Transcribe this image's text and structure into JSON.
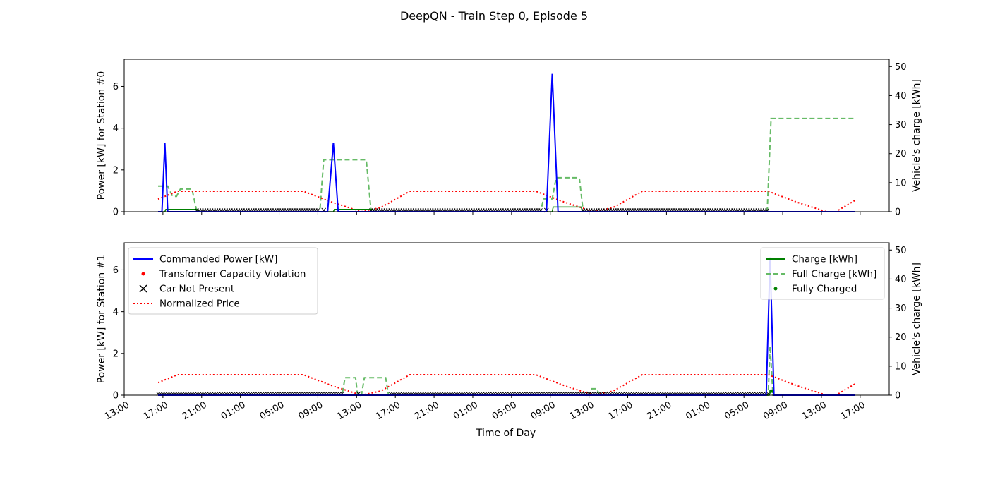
{
  "figure": {
    "title": "DeepQN - Train Step 0, Episode 5",
    "xlabel": "Time of Day",
    "x_tick_labels": [
      "13:00",
      "17:00",
      "21:00",
      "01:00",
      "05:00",
      "09:00",
      "13:00",
      "17:00",
      "21:00",
      "01:00",
      "05:00",
      "09:00",
      "13:00",
      "17:00",
      "21:00",
      "01:00",
      "05:00",
      "09:00",
      "13:00",
      "17:00"
    ]
  },
  "colors": {
    "commanded_power": "#0000ff",
    "violation": "#ff0000",
    "car_not_present": "#000000",
    "normalized_price": "#ff0000",
    "charge": "#008000",
    "full_charge": "#66bb66",
    "fully_charged": "#008000"
  },
  "legend_left": [
    {
      "key": "power",
      "label": "Commanded Power [kW]",
      "icon": "blue-line"
    },
    {
      "key": "violation",
      "label": "Transformer Capacity Violation",
      "icon": "red-dot"
    },
    {
      "key": "notpresent",
      "label": "Car Not Present",
      "icon": "black-x"
    },
    {
      "key": "price",
      "label": "Normalized Price",
      "icon": "red-dotted-line"
    }
  ],
  "legend_right": [
    {
      "key": "charge",
      "label": "Charge [kWh]",
      "icon": "green-line"
    },
    {
      "key": "fullcharge",
      "label": "Full Charge [kWh]",
      "icon": "green-dashed-line"
    },
    {
      "key": "fullycharged",
      "label": "Fully Charged",
      "icon": "green-dot"
    }
  ],
  "chart_data": [
    {
      "type": "line",
      "ylabel": "Power [kW] for Station #0",
      "y2label": "Vehicle's charge [kWh]",
      "ylim": [
        0,
        7.3
      ],
      "y2lim": [
        0,
        52.5
      ],
      "yticks": [
        0,
        2,
        4,
        6
      ],
      "y2ticks": [
        0,
        10,
        20,
        30,
        40,
        50
      ],
      "x_unit": "hours from 13:00 (day 1)",
      "xlim": [
        0,
        79
      ],
      "power": [
        [
          3.5,
          0
        ],
        [
          3.9,
          0
        ],
        [
          4.2,
          3.3
        ],
        [
          4.5,
          0
        ],
        [
          21.0,
          0
        ],
        [
          21.6,
          3.3
        ],
        [
          22.1,
          0
        ],
        [
          43.6,
          0
        ],
        [
          44.2,
          6.6
        ],
        [
          44.8,
          0
        ],
        [
          75.0,
          0
        ],
        [
          75.5,
          0
        ]
      ],
      "full_charge": [
        [
          3.5,
          8.8
        ],
        [
          4.5,
          8.8
        ],
        [
          5.0,
          5.3
        ],
        [
          5.4,
          5.3
        ],
        [
          5.8,
          7.8
        ],
        [
          7.0,
          7.8
        ],
        [
          7.5,
          0
        ],
        [
          20.2,
          0
        ],
        [
          20.6,
          17.9
        ],
        [
          25.0,
          17.9
        ],
        [
          25.5,
          0
        ],
        [
          43.0,
          0
        ],
        [
          43.3,
          4.4
        ],
        [
          44.2,
          4.4
        ],
        [
          44.6,
          11.7
        ],
        [
          47.0,
          11.7
        ],
        [
          47.4,
          0
        ],
        [
          66.4,
          0
        ],
        [
          66.8,
          32.1
        ],
        [
          75.5,
          32.1
        ]
      ],
      "charge": [
        [
          3.5,
          0
        ],
        [
          4.2,
          0
        ],
        [
          4.3,
          0.8
        ],
        [
          5.5,
          0.8
        ],
        [
          7.6,
          0.8
        ],
        [
          7.7,
          0
        ],
        [
          21.6,
          0
        ],
        [
          21.7,
          0.8
        ],
        [
          25.7,
          0.8
        ],
        [
          25.8,
          0
        ],
        [
          44.2,
          0
        ],
        [
          44.3,
          1.6
        ],
        [
          47.2,
          1.6
        ],
        [
          47.3,
          0
        ],
        [
          75.5,
          0
        ]
      ],
      "price": [
        [
          3.5,
          0.6
        ],
        [
          5.5,
          0.98
        ],
        [
          18.5,
          0.98
        ],
        [
          21.5,
          0.45
        ],
        [
          24.5,
          0
        ],
        [
          26.5,
          0.2
        ],
        [
          29.5,
          0.98
        ],
        [
          42.5,
          0.98
        ],
        [
          45.5,
          0.45
        ],
        [
          48.5,
          0
        ],
        [
          50.5,
          0.2
        ],
        [
          53.5,
          0.98
        ],
        [
          66.5,
          0.98
        ],
        [
          69.5,
          0.45
        ],
        [
          72.5,
          0
        ],
        [
          73.5,
          0
        ],
        [
          75.5,
          0.55
        ]
      ],
      "car_not_present": [
        [
          7.5,
          20.1
        ],
        [
          25.5,
          43.0
        ],
        [
          47.4,
          66.5
        ]
      ],
      "car_not_present_end_markers": [
        20.6,
        43.6
      ]
    },
    {
      "type": "line",
      "ylabel": "Power [kW] for Station #1",
      "y2label": "Vehicle's charge [kWh]",
      "ylim": [
        0,
        7.3
      ],
      "y2lim": [
        0,
        52.5
      ],
      "yticks": [
        0,
        2,
        4,
        6
      ],
      "y2ticks": [
        0,
        10,
        20,
        30,
        40,
        50
      ],
      "x_unit": "hours from 13:00 (day 1)",
      "xlim": [
        0,
        79
      ],
      "power": [
        [
          3.5,
          0
        ],
        [
          66.3,
          0
        ],
        [
          66.7,
          6.6
        ],
        [
          67.1,
          0
        ],
        [
          75.5,
          0
        ]
      ],
      "full_charge": [
        [
          3.5,
          0
        ],
        [
          22.5,
          0
        ],
        [
          22.8,
          6.0
        ],
        [
          23.9,
          6.0
        ],
        [
          24.1,
          0
        ],
        [
          24.5,
          0
        ],
        [
          24.8,
          6.0
        ],
        [
          27.0,
          6.0
        ],
        [
          27.3,
          0
        ],
        [
          48.0,
          0
        ],
        [
          48.3,
          2.2
        ],
        [
          48.8,
          2.2
        ],
        [
          49.1,
          0
        ],
        [
          66.5,
          0
        ],
        [
          66.7,
          17.0
        ],
        [
          67.0,
          0
        ],
        [
          75.5,
          0
        ]
      ],
      "charge": [
        [
          3.5,
          0
        ],
        [
          66.6,
          0
        ],
        [
          66.8,
          1.6
        ],
        [
          67.2,
          0
        ],
        [
          75.5,
          0
        ]
      ],
      "price": [
        [
          3.5,
          0.6
        ],
        [
          5.5,
          0.98
        ],
        [
          18.5,
          0.98
        ],
        [
          21.5,
          0.45
        ],
        [
          24.5,
          0
        ],
        [
          26.5,
          0.2
        ],
        [
          29.5,
          0.98
        ],
        [
          42.5,
          0.98
        ],
        [
          45.5,
          0.45
        ],
        [
          48.5,
          0
        ],
        [
          50.5,
          0.2
        ],
        [
          53.5,
          0.98
        ],
        [
          66.5,
          0.98
        ],
        [
          69.5,
          0.45
        ],
        [
          72.5,
          0
        ],
        [
          73.5,
          0
        ],
        [
          75.5,
          0.55
        ]
      ],
      "car_not_present": [
        [
          3.5,
          22.5
        ],
        [
          27.5,
          66.5
        ]
      ],
      "car_not_present_end_markers": [
        24.2,
        48.0
      ],
      "fully_charged": [
        [
          66.8,
          1.4
        ]
      ]
    }
  ]
}
